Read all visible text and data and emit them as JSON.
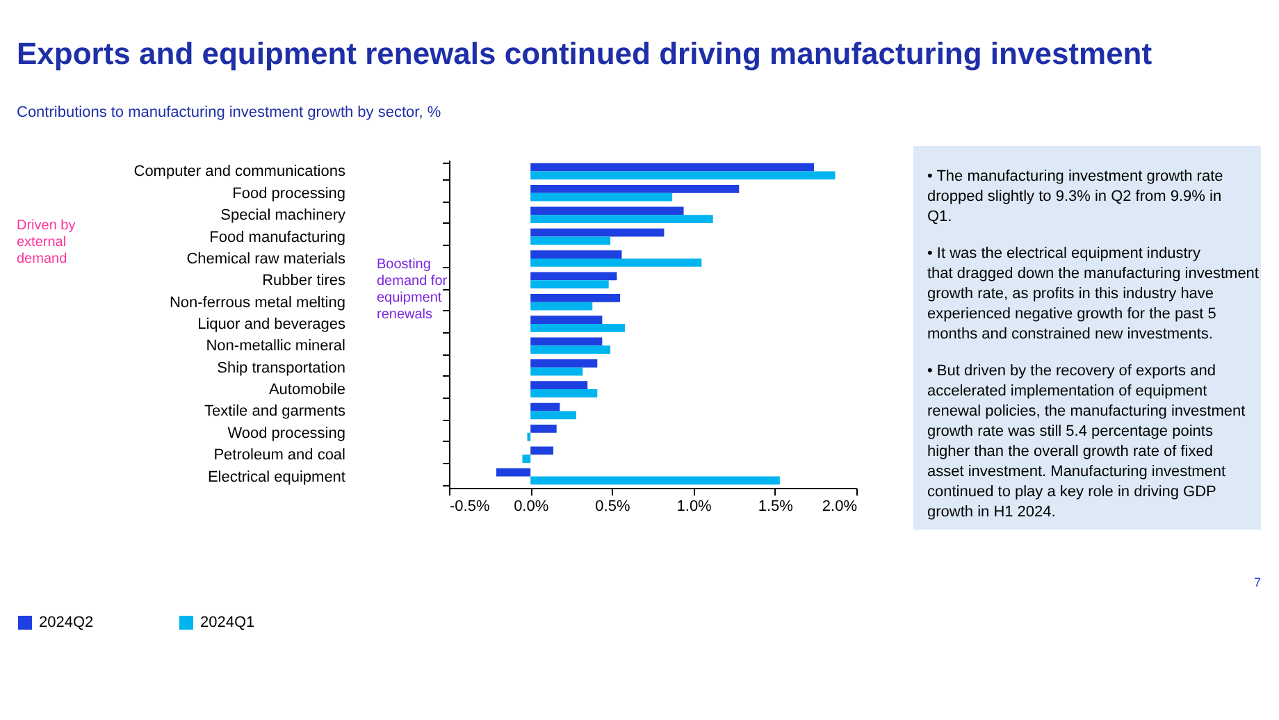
{
  "chart_data": {
    "type": "bar",
    "orientation": "horizontal",
    "title": "Exports and equipment renewals continued driving manufacturing investment",
    "subtitle": "Contributions to manufacturing investment growth by sector, %",
    "categories": [
      "Computer and communications",
      "Food processing",
      "Special machinery",
      "Food manufacturing",
      "Chemical raw materials",
      "Rubber tires",
      "Non-ferrous metal melting",
      "Liquor and beverages",
      "Non-metallic mineral",
      "Ship transportation",
      "Automobile",
      "Textile and garments",
      "Wood processing",
      "Petroleum and coal",
      "Electrical equipment"
    ],
    "series": [
      {
        "name": "2024Q2",
        "color": "#1f40e0",
        "values": [
          1.74,
          1.28,
          0.94,
          0.82,
          0.56,
          0.53,
          0.55,
          0.44,
          0.44,
          0.41,
          0.35,
          0.18,
          0.16,
          0.14,
          -0.21
        ]
      },
      {
        "name": "2024Q1",
        "color": "#00b4f0",
        "values": [
          1.87,
          0.87,
          1.12,
          0.49,
          1.05,
          0.48,
          0.38,
          0.58,
          0.49,
          0.32,
          0.41,
          0.28,
          -0.02,
          -0.05,
          1.53
        ]
      }
    ],
    "xlim": [
      -0.5,
      2.0
    ],
    "xticks": [
      {
        "value": -0.5,
        "label": "-0.5%"
      },
      {
        "value": 0,
        "label": "0.0%"
      },
      {
        "value": 0.5,
        "label": "0.5%"
      },
      {
        "value": 1.0,
        "label": "1.0%"
      },
      {
        "value": 1.5,
        "label": "1.5%"
      },
      {
        "value": 2.0,
        "label": "2.0%"
      }
    ],
    "grid": false,
    "legend": "bottom",
    "annotations": [
      "Driven by external demand",
      "Boosting demand for equipment renewals",
      "• The manufacturing investment growth rate dropped slightly to 9.3% in Q2 from 9.9% in Q1.",
      "• It was the electrical equipment industry that dragged down the manufacturing investment growth rate, as profits in this industry have experienced negative growth for the past 5 months and constrained new investments.",
      "• But driven by the recovery of exports and accelerated implementation of equipment renewal policies, the manufacturing investment growth rate was still 5.4 percentage points higher than the overall growth rate of fixed asset investment. Manufacturing investment continued to play a key role in driving GDP growth in H1 2024.",
      "7"
    ]
  }
}
